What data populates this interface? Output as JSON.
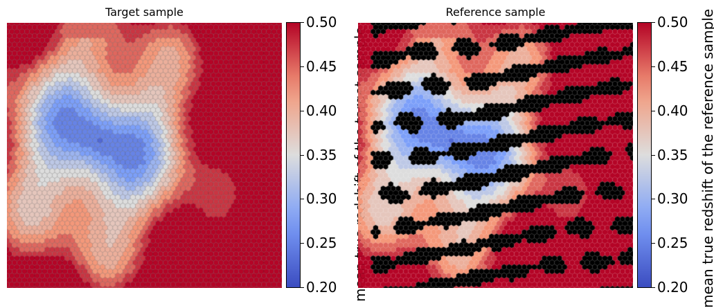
{
  "chart_data": [
    {
      "type": "heatmap",
      "title": "Target sample",
      "colorbar_label": "mean true redshift of the target sample",
      "colormap": "coolwarm",
      "vmin": 0.2,
      "vmax": 0.5,
      "colorbar_ticks": [
        "0.50",
        "0.45",
        "0.40",
        "0.35",
        "0.30",
        "0.25",
        "0.20"
      ],
      "cell_style": "hexagonal SOM cells with dark outlines",
      "missing_cells_color": "#000000"
    },
    {
      "type": "heatmap",
      "title": "Reference sample",
      "colorbar_label": "mean true redshift of the reference sample",
      "colormap": "coolwarm",
      "vmin": 0.2,
      "vmax": 0.5,
      "colorbar_ticks": [
        "0.50",
        "0.45",
        "0.40",
        "0.35",
        "0.30",
        "0.25",
        "0.20"
      ],
      "cell_style": "hexagonal SOM cells",
      "missing_cells_color": "#000000"
    }
  ]
}
